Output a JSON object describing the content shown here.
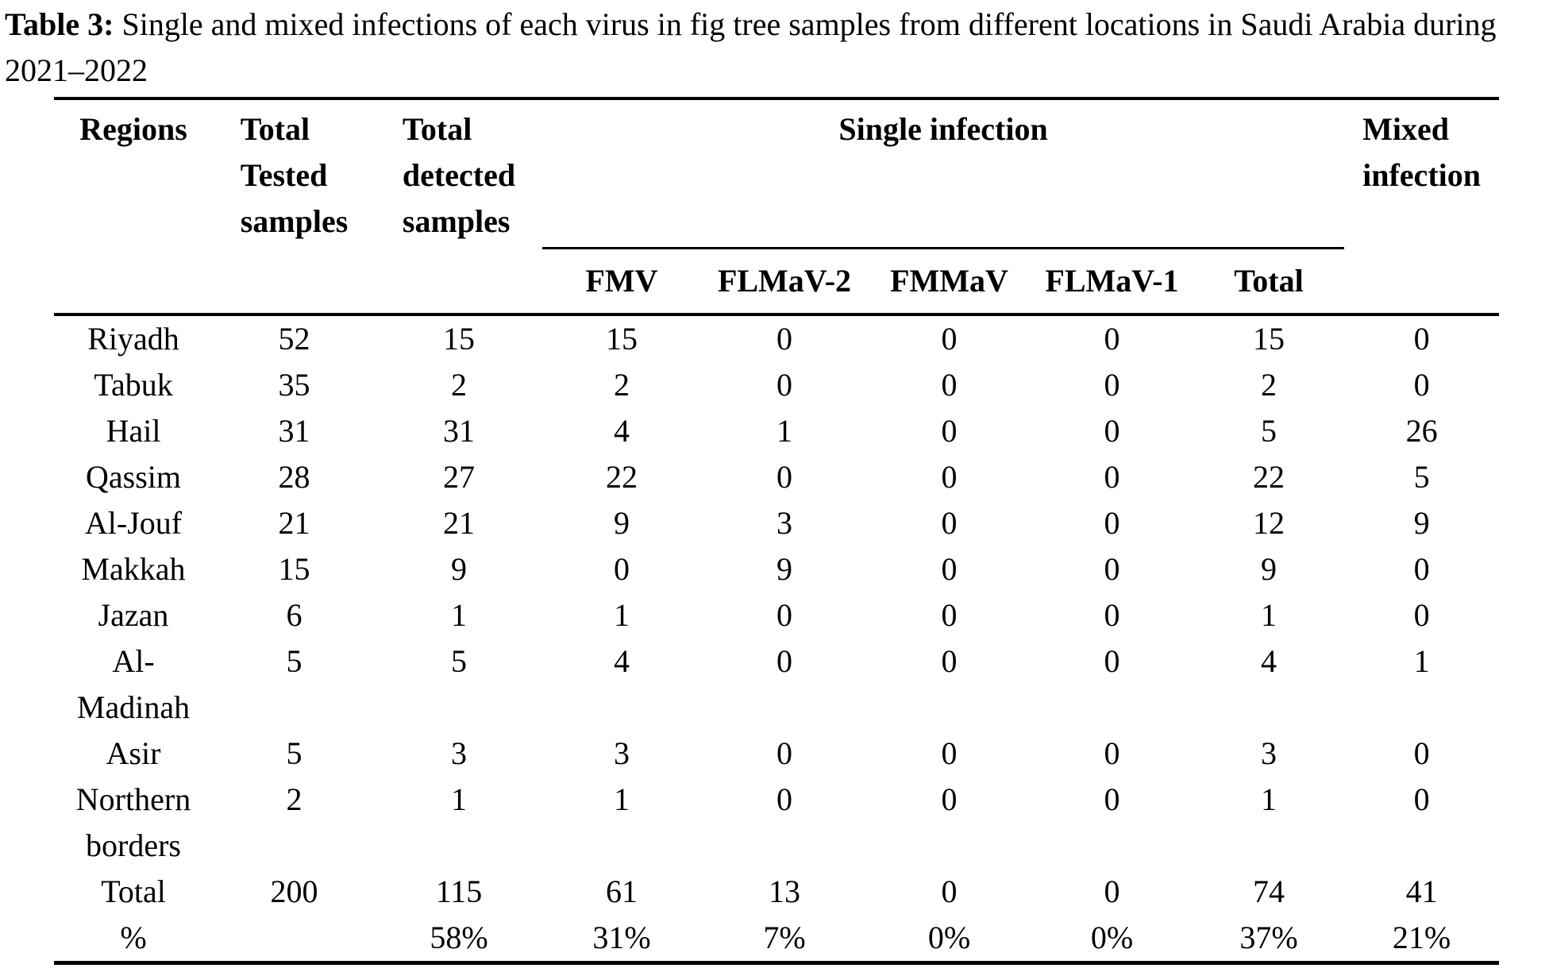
{
  "caption": {
    "label": "Table 3:",
    "line1": " Single and mixed infections of each virus in fig tree samples from different locations in Saudi Arabia during",
    "line2": "2021–2022"
  },
  "table": {
    "header": {
      "regions": "Regions",
      "total_tested": "Total\nTested\nsamples",
      "total_detected": "Total\ndetected\nsamples",
      "single_infection": "Single infection",
      "mixed_infection": "Mixed\ninfection",
      "virus_columns": [
        "FMV",
        "FLMaV-2",
        "FMMaV",
        "FLMaV-1",
        "Total"
      ]
    },
    "rows": [
      {
        "region": "Riyadh",
        "values": [
          "52",
          "15",
          "15",
          "0",
          "0",
          "0",
          "15",
          "0"
        ]
      },
      {
        "region": "Tabuk",
        "values": [
          "35",
          "2",
          "2",
          "0",
          "0",
          "0",
          "2",
          "0"
        ]
      },
      {
        "region": "Hail",
        "values": [
          "31",
          "31",
          "4",
          "1",
          "0",
          "0",
          "5",
          "26"
        ]
      },
      {
        "region": "Qassim",
        "values": [
          "28",
          "27",
          "22",
          "0",
          "0",
          "0",
          "22",
          "5"
        ]
      },
      {
        "region": "Al-Jouf",
        "values": [
          "21",
          "21",
          "9",
          "3",
          "0",
          "0",
          "12",
          "9"
        ]
      },
      {
        "region": "Makkah",
        "values": [
          "15",
          "9",
          "0",
          "9",
          "0",
          "0",
          "9",
          "0"
        ]
      },
      {
        "region": "Jazan",
        "values": [
          "6",
          "1",
          "1",
          "0",
          "0",
          "0",
          "1",
          "0"
        ]
      },
      {
        "region": "Al-\nMadinah",
        "values": [
          "5",
          "5",
          "4",
          "0",
          "0",
          "0",
          "4",
          "1"
        ]
      },
      {
        "region": "Asir",
        "values": [
          "5",
          "3",
          "3",
          "0",
          "0",
          "0",
          "3",
          "0"
        ]
      },
      {
        "region": "Northern\nborders",
        "values": [
          "2",
          "1",
          "1",
          "0",
          "0",
          "0",
          "1",
          "0"
        ]
      },
      {
        "region": "Total",
        "values": [
          "200",
          "115",
          "61",
          "13",
          "0",
          "0",
          "74",
          "41"
        ]
      },
      {
        "region": "%",
        "values": [
          "",
          "58%",
          "31%",
          "7%",
          "0%",
          "0%",
          "37%",
          "21%"
        ]
      }
    ]
  }
}
